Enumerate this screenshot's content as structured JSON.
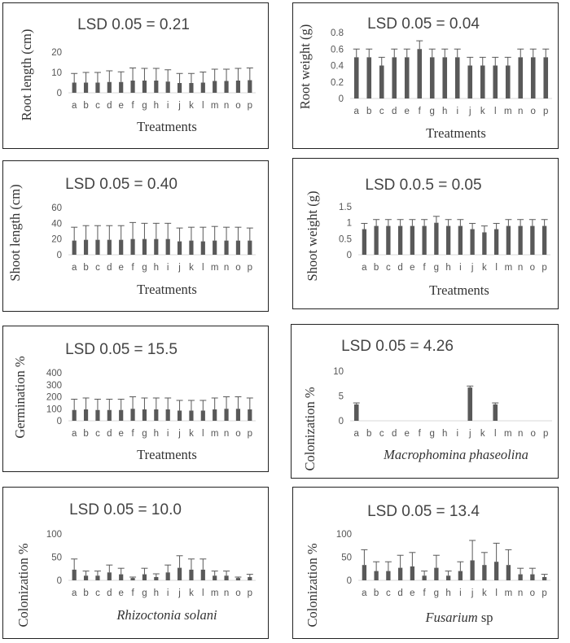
{
  "chart_data": [
    {
      "type": "bar",
      "title": "LSD 0.05 = 0.21",
      "ylabel": "Root length (cm)",
      "xlabel": "Treatments",
      "categories": [
        "a",
        "b",
        "c",
        "d",
        "e",
        "f",
        "g",
        "h",
        "i",
        "j",
        "k",
        "l",
        "m",
        "n",
        "o",
        "p"
      ],
      "ylim": [
        0,
        20
      ],
      "yticks": [
        0,
        10,
        20
      ],
      "values": [
        5.0,
        5.0,
        5.0,
        5.3,
        5.3,
        6.0,
        6.0,
        6.0,
        5.5,
        4.8,
        4.8,
        5.0,
        5.8,
        5.8,
        6.0,
        6.2
      ],
      "errors": [
        4.5,
        5.0,
        5.0,
        5.5,
        5.0,
        6.2,
        6.0,
        6.0,
        5.8,
        4.7,
        4.7,
        5.2,
        5.8,
        5.8,
        6.0,
        6.0
      ]
    },
    {
      "type": "bar",
      "title": "LSD 0.05 = 0.04",
      "ylabel": "Root weight (g)",
      "xlabel": "Treatments",
      "categories": [
        "a",
        "b",
        "c",
        "d",
        "e",
        "f",
        "g",
        "h",
        "i",
        "j",
        "k",
        "l",
        "m",
        "n",
        "o",
        "p"
      ],
      "ylim": [
        0,
        0.8
      ],
      "yticks": [
        0,
        0.2,
        0.4,
        0.6,
        0.8
      ],
      "values": [
        0.5,
        0.5,
        0.4,
        0.5,
        0.5,
        0.6,
        0.5,
        0.5,
        0.5,
        0.4,
        0.4,
        0.4,
        0.4,
        0.5,
        0.5,
        0.5
      ],
      "errors": [
        0.1,
        0.1,
        0.1,
        0.1,
        0.1,
        0.1,
        0.1,
        0.1,
        0.1,
        0.1,
        0.1,
        0.1,
        0.1,
        0.1,
        0.1,
        0.1
      ]
    },
    {
      "type": "bar",
      "title": "LSD 0.05 = 0.40",
      "ylabel": "Shoot length (cm)",
      "xlabel": "Treatments",
      "categories": [
        "a",
        "b",
        "c",
        "d",
        "e",
        "f",
        "g",
        "h",
        "i",
        "j",
        "k",
        "l",
        "m",
        "n",
        "o",
        "p"
      ],
      "ylim": [
        0,
        60
      ],
      "yticks": [
        0,
        20,
        40,
        60
      ],
      "values": [
        18,
        19,
        19,
        19,
        19,
        20,
        20,
        20,
        20,
        17,
        18,
        17,
        18,
        18,
        18,
        18
      ],
      "errors": [
        17,
        18,
        18,
        18,
        18,
        21,
        20,
        20,
        20,
        17,
        17,
        18,
        18,
        17,
        17,
        16
      ]
    },
    {
      "type": "bar",
      "title": "LSD 0.0.5 = 0.05",
      "ylabel": "Shoot weight (g)",
      "xlabel": "Treatments",
      "categories": [
        "a",
        "b",
        "c",
        "d",
        "e",
        "f",
        "g",
        "h",
        "i",
        "j",
        "k",
        "l",
        "m",
        "n",
        "o",
        "p"
      ],
      "ylim": [
        0,
        1.5
      ],
      "yticks": [
        0,
        0.5,
        1,
        1.5
      ],
      "ytick_labels": [
        "0",
        "0.5",
        "1",
        "1.5"
      ],
      "values": [
        0.8,
        0.9,
        0.9,
        0.9,
        0.9,
        0.9,
        1.0,
        0.9,
        0.9,
        0.8,
        0.7,
        0.8,
        0.9,
        0.9,
        0.9,
        0.9
      ],
      "errors": [
        0.18,
        0.2,
        0.2,
        0.2,
        0.2,
        0.2,
        0.2,
        0.2,
        0.2,
        0.18,
        0.2,
        0.18,
        0.2,
        0.2,
        0.2,
        0.2
      ]
    },
    {
      "type": "bar",
      "title": "LSD 0.05 = 15.5",
      "ylabel": "Germination %",
      "xlabel": "Treatments",
      "categories": [
        "a",
        "b",
        "c",
        "d",
        "e",
        "f",
        "g",
        "h",
        "i",
        "j",
        "k",
        "l",
        "m",
        "n",
        "o",
        "p"
      ],
      "ylim": [
        0,
        400
      ],
      "yticks": [
        0,
        100,
        200,
        300,
        400
      ],
      "values": [
        90,
        95,
        90,
        90,
        90,
        100,
        95,
        95,
        95,
        85,
        85,
        85,
        95,
        100,
        100,
        95
      ],
      "errors": [
        90,
        95,
        90,
        90,
        90,
        100,
        95,
        95,
        95,
        85,
        85,
        85,
        95,
        100,
        100,
        95
      ]
    },
    {
      "type": "bar",
      "title": "LSD 0.05 = 4.26",
      "ylabel": "Colonization %",
      "xlabel": "Macrophomina phaseolina",
      "xlabel_italic": true,
      "categories": [
        "a",
        "b",
        "c",
        "d",
        "e",
        "f",
        "g",
        "h",
        "i",
        "j",
        "k",
        "l",
        "m",
        "n",
        "o",
        "p"
      ],
      "ylim": [
        0,
        10
      ],
      "yticks": [
        0,
        5,
        10
      ],
      "values": [
        3.3,
        0,
        0,
        0,
        0,
        0,
        0,
        0,
        0,
        6.7,
        0,
        3.3,
        0,
        0,
        0,
        0
      ],
      "errors": [
        0.3,
        0,
        0,
        0,
        0,
        0,
        0,
        0,
        0,
        0.3,
        0,
        0.3,
        0,
        0,
        0,
        0
      ]
    },
    {
      "type": "bar",
      "title": "LSD 0.05 = 10.0",
      "ylabel": "Colonization %",
      "xlabel": "Rhizoctonia solani",
      "xlabel_italic": true,
      "categories": [
        "a",
        "b",
        "c",
        "d",
        "e",
        "f",
        "g",
        "h",
        "i",
        "j",
        "k",
        "l",
        "m",
        "n",
        "o",
        "p"
      ],
      "ylim": [
        0,
        100
      ],
      "yticks": [
        0,
        50,
        100
      ],
      "values": [
        23,
        10,
        10,
        17,
        13,
        5,
        13,
        7,
        17,
        27,
        23,
        23,
        10,
        10,
        5,
        7
      ],
      "errors": [
        23,
        10,
        10,
        16,
        13,
        2,
        13,
        7,
        16,
        26,
        23,
        23,
        10,
        10,
        2,
        6
      ]
    },
    {
      "type": "bar",
      "title": "LSD 0.05 = 13.4",
      "ylabel": "Colonization %",
      "xlabel": "Fusarium sp",
      "xlabel_italic_part": "Fusarium",
      "categories": [
        "a",
        "b",
        "c",
        "d",
        "e",
        "f",
        "g",
        "h",
        "i",
        "j",
        "k",
        "l",
        "m",
        "n",
        "o",
        "p"
      ],
      "ylim": [
        0,
        100
      ],
      "yticks": [
        0,
        50,
        100
      ],
      "values": [
        33,
        20,
        20,
        27,
        30,
        10,
        27,
        10,
        20,
        43,
        33,
        40,
        33,
        13,
        13,
        7
      ],
      "errors": [
        33,
        20,
        20,
        27,
        30,
        10,
        27,
        10,
        20,
        43,
        27,
        40,
        33,
        13,
        13,
        6
      ]
    }
  ],
  "colors": {
    "bar": "#595959",
    "error": "#595959",
    "axis": "#d9d9d9",
    "border": "#222222"
  }
}
